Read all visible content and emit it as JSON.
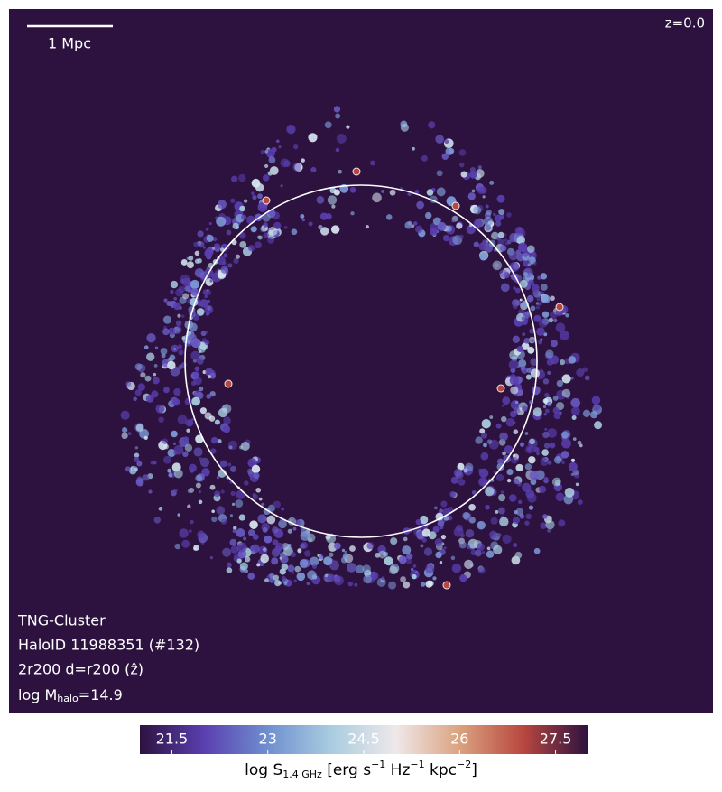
{
  "chart_data": {
    "type": "image",
    "scale_bar_label": "1 Mpc",
    "redshift": "z=0.0",
    "annotations": [
      "TNG-Cluster",
      "HaloID 11988351 (#132)",
      "2r200 d=r200 (ẑ)"
    ],
    "mass_label": [
      "log M",
      "halo",
      "=14.9"
    ],
    "colorbar": {
      "clim": [
        21,
        28
      ],
      "ticks": [
        21.5,
        23.0,
        24.5,
        26.0,
        27.5
      ],
      "colors": [
        "#2d1240",
        "#5a3fb0",
        "#6f8fcf",
        "#a9cde0",
        "#efe8ea",
        "#dba27f",
        "#b8473f",
        "#2d1240"
      ],
      "label": [
        "log S",
        "1.4 GHz",
        " [erg s",
        "−1",
        " Hz",
        "−1",
        " kpc",
        "−2",
        "]"
      ]
    }
  }
}
